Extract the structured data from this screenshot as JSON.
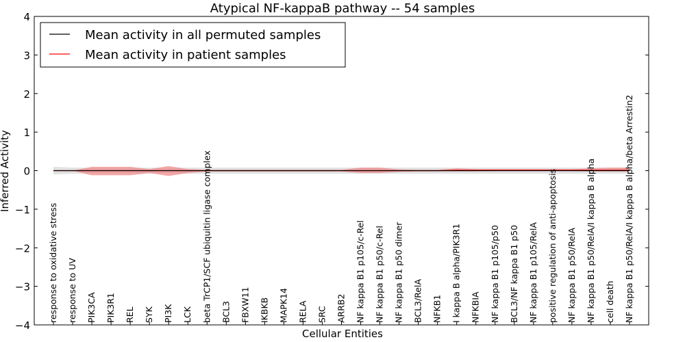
{
  "chart_data": {
    "type": "line",
    "title": "Atypical NF-kappaB pathway -- 54 samples",
    "xlabel": "Cellular Entities",
    "ylabel": "Inferred Activity",
    "ylim": [
      -4,
      4
    ],
    "yticks": [
      -4,
      -3,
      -2,
      -1,
      0,
      1,
      2,
      3,
      4
    ],
    "grid": false,
    "legend_position": "top-left",
    "categories": [
      "response to oxidative stress",
      "response to UV",
      "PIK3CA",
      "PIK3R1",
      "REL",
      "SYK",
      "PI3K",
      "LCK",
      "beta TrCP1/SCF ubiquitin ligase complex",
      "BCL3",
      "FBXW11",
      "IKBKB",
      "MAPK14",
      "RELA",
      "SRC",
      "ARRB2",
      "NF kappa B1 p105/c-Rel",
      "NF kappa B1 p50/c-Rel",
      "NF kappa B1 p50 dimer",
      "BCL3/RelA",
      "NFKB1",
      "I kappa B alpha/PIK3R1",
      "NFKBIA",
      "NF kappa B1 p105/p50",
      "BCL3/NF kappa B1 p50",
      "NF kappa B1 p105/RelA",
      "positive regulation of anti-apoptosis",
      "NF kappa B1 p50/RelA",
      "NF kappa B1 p50/RelA/I kappa B alpha",
      "cell death",
      "NF kappa B1 p50/RelA/I kappa B alpha/beta Arrestin2"
    ],
    "series": [
      {
        "name": "Mean activity in all permuted samples",
        "color": "#000000",
        "band_color": "#bfbfbf",
        "values": [
          0,
          0,
          0,
          0,
          0,
          0,
          0,
          0,
          0,
          0,
          0,
          0,
          0,
          0,
          0,
          0,
          0,
          0,
          0,
          0,
          0,
          0,
          0,
          0,
          0,
          0,
          0,
          0,
          0,
          0,
          0
        ],
        "band_upper": [
          0.1,
          0.08,
          0.08,
          0.08,
          0.08,
          0.08,
          0.08,
          0.08,
          0.08,
          0.08,
          0.08,
          0.08,
          0.08,
          0.08,
          0.08,
          0.08,
          0.08,
          0.08,
          0.08,
          0.08,
          0.08,
          0.08,
          0.08,
          0.08,
          0.08,
          0.08,
          0.08,
          0.08,
          0.08,
          0.08,
          0.08
        ],
        "band_lower": [
          -0.1,
          -0.08,
          -0.08,
          -0.08,
          -0.08,
          -0.08,
          -0.08,
          -0.08,
          -0.08,
          -0.08,
          -0.08,
          -0.08,
          -0.08,
          -0.08,
          -0.08,
          -0.08,
          -0.08,
          -0.08,
          -0.08,
          -0.08,
          -0.08,
          -0.08,
          -0.08,
          -0.08,
          -0.08,
          -0.08,
          -0.08,
          -0.08,
          -0.08,
          -0.08,
          -0.08
        ]
      },
      {
        "name": "Mean activity in patient samples",
        "color": "#ff0000",
        "band_color": "#f08080",
        "values": [
          0,
          0,
          0,
          0,
          0,
          0,
          0,
          0,
          0,
          0,
          0,
          0,
          0,
          0,
          0,
          0,
          0,
          0,
          0,
          0,
          0,
          0.01,
          0.01,
          0.01,
          0.01,
          0.01,
          0.01,
          0.01,
          0.01,
          0.01,
          0.01
        ],
        "band_upper": [
          0,
          0,
          0.1,
          0.1,
          0.1,
          0.04,
          0.12,
          0.04,
          0.02,
          0.02,
          0.02,
          0.02,
          0.02,
          0.02,
          0.02,
          0.02,
          0.08,
          0.08,
          0.03,
          0.02,
          0.02,
          0.06,
          0.04,
          0.04,
          0.04,
          0.04,
          0.04,
          0.04,
          0.06,
          0.08,
          0.08
        ],
        "band_lower": [
          0,
          0,
          -0.12,
          -0.12,
          -0.12,
          -0.06,
          -0.14,
          -0.06,
          -0.02,
          -0.02,
          -0.02,
          -0.02,
          -0.02,
          -0.02,
          -0.02,
          -0.02,
          -0.06,
          -0.06,
          -0.03,
          -0.02,
          -0.02,
          -0.02,
          -0.02,
          -0.01,
          -0.01,
          -0.01,
          -0.01,
          -0.01,
          -0.02,
          -0.02,
          -0.02
        ]
      }
    ]
  }
}
